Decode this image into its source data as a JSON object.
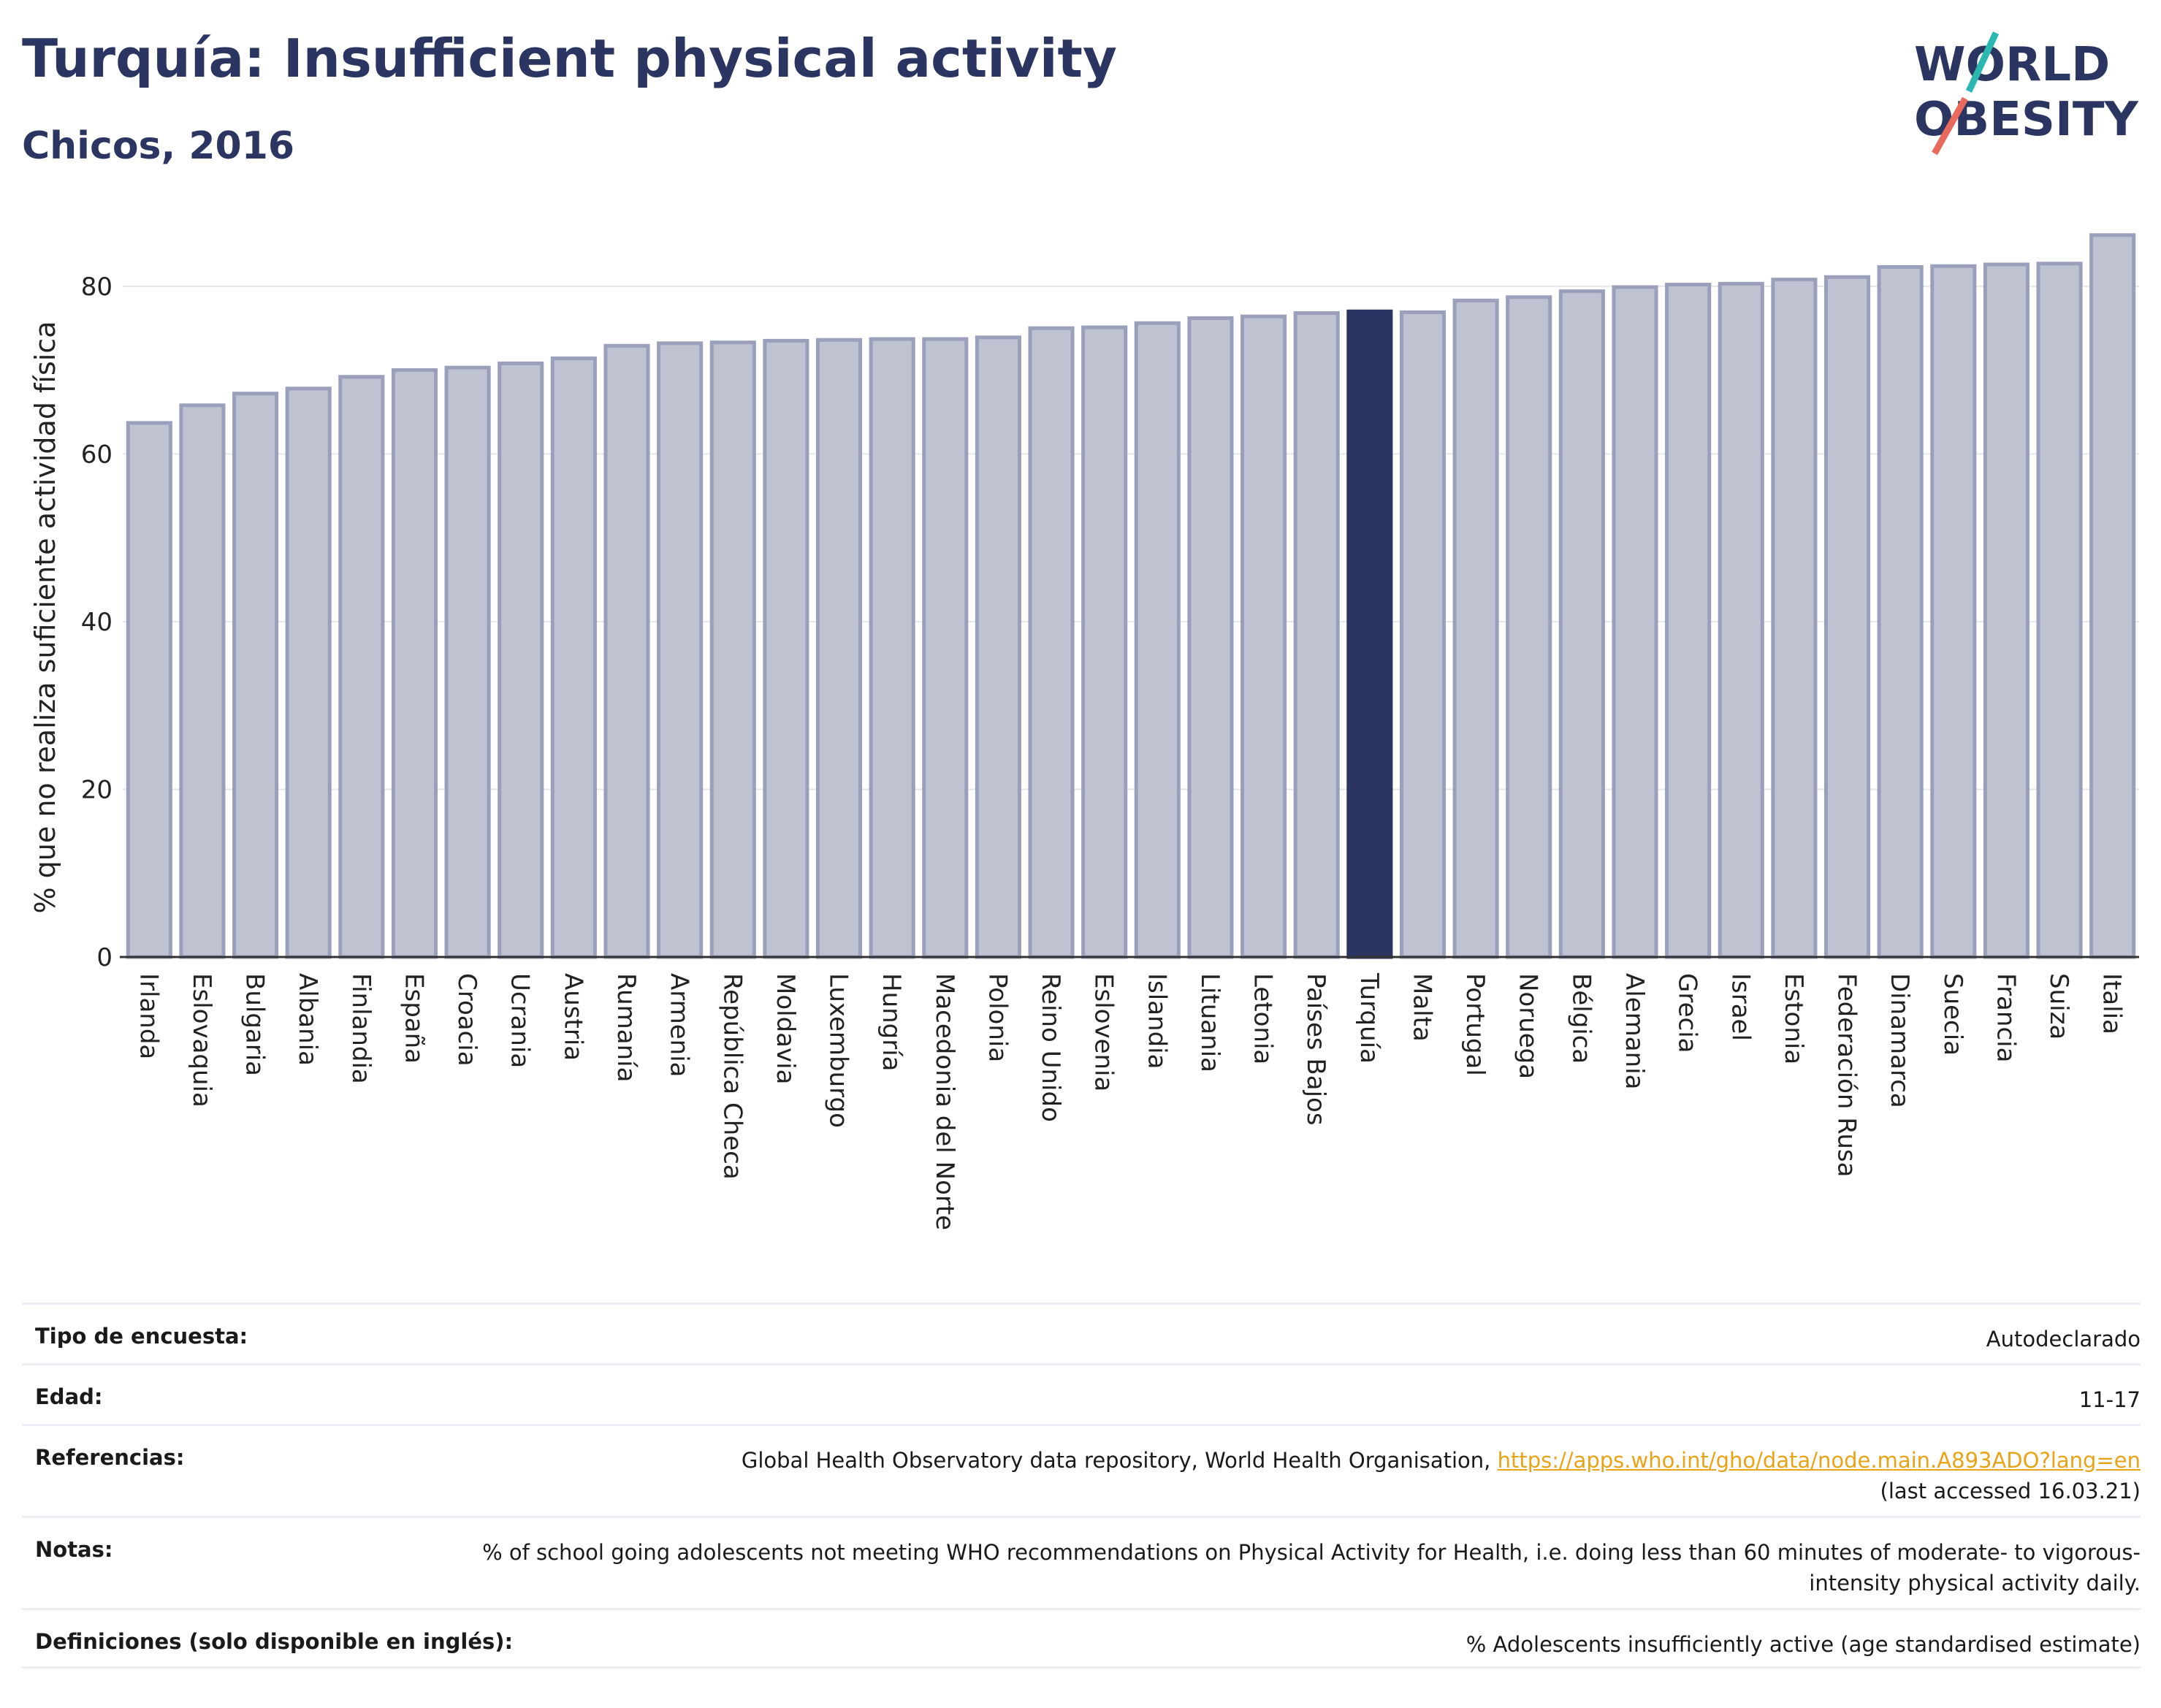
{
  "header": {
    "title": "Turquía: Insufficient physical activity",
    "subtitle": "Chicos, 2016",
    "logo_line1": "WORLD",
    "logo_line2": "OBESITY"
  },
  "colors": {
    "highlight": "#2b3562",
    "bar": "#bfc2d0",
    "bar_border": "#9a9fbc",
    "title": "#2b3562",
    "logo_teal": "#2bb8b0",
    "logo_coral": "#e86a5c"
  },
  "chart_data": {
    "type": "bar",
    "title": "Turquía: Insufficient physical activity",
    "subtitle": "Chicos, 2016",
    "ylabel": "% que no realiza suficiente actividad física",
    "xlabel": "",
    "ylim": [
      0,
      88
    ],
    "yticks": [
      0,
      20,
      40,
      60,
      80
    ],
    "grid": true,
    "highlight": "Turquía",
    "categories": [
      "Irlanda",
      "Eslovaquia",
      "Bulgaria",
      "Albania",
      "Finlandia",
      "España",
      "Croacia",
      "Ucrania",
      "Austria",
      "Rumanía",
      "Armenia",
      "República Checa",
      "Moldavia",
      "Luxemburgo",
      "Hungría",
      "Macedonia del Norte",
      "Polonia",
      "Reino Unido",
      "Eslovenia",
      "Islandia",
      "Lituania",
      "Letonia",
      "Países Bajos",
      "Turquía",
      "Malta",
      "Portugal",
      "Noruega",
      "Bélgica",
      "Alemania",
      "Grecia",
      "Israel",
      "Estonia",
      "Federación Rusa",
      "Dinamarca",
      "Suecia",
      "Francia",
      "Suiza",
      "Italia"
    ],
    "values": [
      63.7,
      65.8,
      67.2,
      67.8,
      69.2,
      70.0,
      70.3,
      70.8,
      71.4,
      72.9,
      73.2,
      73.3,
      73.5,
      73.6,
      73.7,
      73.7,
      73.9,
      75.0,
      75.1,
      75.6,
      76.2,
      76.4,
      76.8,
      77.0,
      76.9,
      78.3,
      78.7,
      79.4,
      79.9,
      80.2,
      80.3,
      80.8,
      81.1,
      82.3,
      82.4,
      82.6,
      82.7,
      86.1
    ]
  },
  "info": {
    "survey_type": {
      "label": "Tipo de encuesta:",
      "value": "Autodeclarado"
    },
    "age": {
      "label": "Edad:",
      "value": "11-17"
    },
    "references": {
      "label": "Referencias:",
      "text": "Global Health Observatory data repository, World Health Organisation,",
      "link": "https://apps.who.int/gho/data/node.main.A893ADO?lang=en",
      "accessed": "(last accessed 16.03.21)"
    },
    "notes": {
      "label": "Notas:",
      "value": "% of school going adolescents not meeting WHO recommendations on Physical Activity for Health, i.e. doing less than 60 minutes of moderate- to vigorous-intensity physical activity daily."
    },
    "definitions": {
      "label": "Definiciones (solo disponible en inglés):",
      "value": "% Adolescents insufficiently active (age standardised estimate)"
    }
  }
}
